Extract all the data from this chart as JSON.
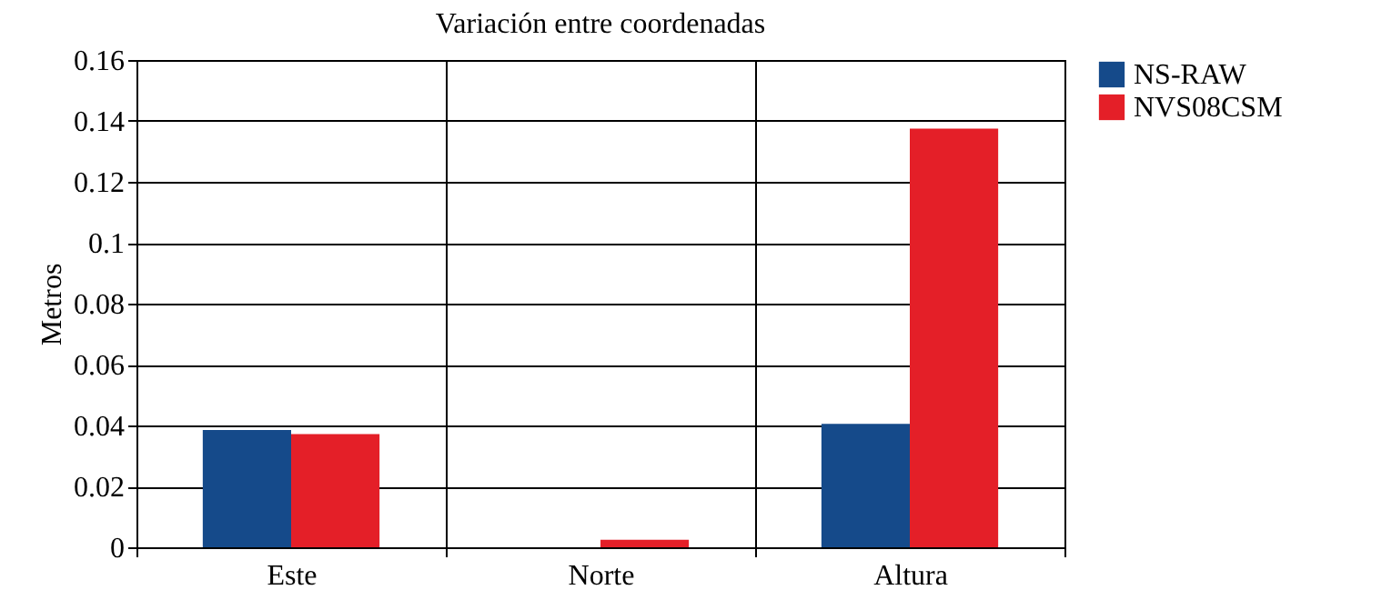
{
  "chart_data": {
    "type": "bar",
    "title": "Variación entre coordenadas",
    "ylabel": "Metros",
    "categories": [
      "Este",
      "Norte",
      "Altura"
    ],
    "series": [
      {
        "name": "NS-RAW",
        "color": "#154a8a",
        "values": [
          0.0385,
          0,
          0.0405
        ]
      },
      {
        "name": "NVS08CSM",
        "color": "#e41f28",
        "values": [
          0.0372,
          0.0025,
          0.1375
        ]
      }
    ],
    "ylim": [
      0,
      0.16
    ],
    "yticks": [
      0,
      0.02,
      0.04,
      0.06,
      0.08,
      0.1,
      0.12,
      0.14,
      0.16
    ],
    "grid": true,
    "legend": "right"
  }
}
